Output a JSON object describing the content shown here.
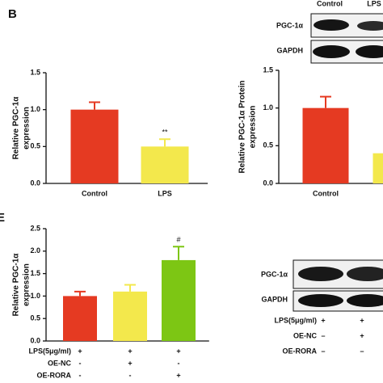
{
  "panels": {
    "b": "B",
    "e": "E"
  },
  "blot_top": {
    "lanes": [
      "Control",
      "LPS"
    ],
    "rows": [
      "PGC-1α",
      "GAPDH"
    ]
  },
  "blot_bottom": {
    "rows": [
      "PGC-1α",
      "GAPDH"
    ],
    "treatments": [
      {
        "label": "LPS(5μg/ml)",
        "marks": [
          "+",
          "+"
        ]
      },
      {
        "label": "OE-NC",
        "marks": [
          "–",
          "+"
        ]
      },
      {
        "label": "OE-RORA",
        "marks": [
          "–",
          "–"
        ]
      }
    ]
  },
  "treatment_table": [
    {
      "label": "LPS(5μg/ml)",
      "marks": [
        "+",
        "+",
        "+"
      ]
    },
    {
      "label": "OE-NC",
      "marks": [
        "-",
        "+",
        "-"
      ]
    },
    {
      "label": "OE-RORA",
      "marks": [
        "-",
        "-",
        "+"
      ]
    }
  ],
  "chart_data": [
    {
      "type": "bar",
      "ylabel": [
        "Relative PGC-1α",
        "expression"
      ],
      "categories": [
        "Control",
        "LPS"
      ],
      "values": [
        1.0,
        0.5
      ],
      "errors": [
        0.1,
        0.1
      ],
      "colors": [
        "#e53a22",
        "#f3e84c"
      ],
      "annotations": [
        {
          "category": "LPS",
          "text": "**"
        }
      ],
      "ylim": [
        0,
        1.5
      ],
      "yticks": [
        {
          "value": 0,
          "label": "0.0"
        },
        {
          "value": 0.5,
          "label": "0.5"
        },
        {
          "value": 1,
          "label": "1.0"
        },
        {
          "value": 1.5,
          "label": "1.5"
        }
      ]
    },
    {
      "type": "bar",
      "ylabel": [
        "Relative PGC-1α Protein",
        "expression"
      ],
      "categories": [
        "Control",
        null
      ],
      "values": [
        1.0,
        0.4
      ],
      "errors": [
        0.15,
        0.05
      ],
      "colors": [
        "#e53a22",
        "#f3e84c"
      ],
      "annotations": [],
      "ylim": [
        0,
        1.5
      ],
      "yticks": [
        {
          "value": 0,
          "label": "0.0"
        },
        {
          "value": 0.5,
          "label": "0.5"
        },
        {
          "value": 1,
          "label": "1.0"
        },
        {
          "value": 1.5,
          "label": "1.5"
        }
      ]
    },
    {
      "type": "bar",
      "ylabel": [
        "Relative PGC-1α",
        "expression"
      ],
      "categories": [
        null,
        null,
        null
      ],
      "values": [
        1.0,
        1.1,
        1.8
      ],
      "errors": [
        0.1,
        0.15,
        0.3
      ],
      "colors": [
        "#e53a22",
        "#f3e84c",
        "#7dc614"
      ],
      "annotations": [
        {
          "category": null,
          "index": 2,
          "text": "#"
        }
      ],
      "ylim": [
        0,
        2.5
      ],
      "yticks": [
        {
          "value": 0,
          "label": "0.0"
        },
        {
          "value": 0.5,
          "label": "0.5"
        },
        {
          "value": 1,
          "label": "1.0"
        },
        {
          "value": 1.5,
          "label": "1.5"
        },
        {
          "value": 2,
          "label": "2.0"
        },
        {
          "value": 2.5,
          "label": "2.5"
        }
      ]
    }
  ]
}
